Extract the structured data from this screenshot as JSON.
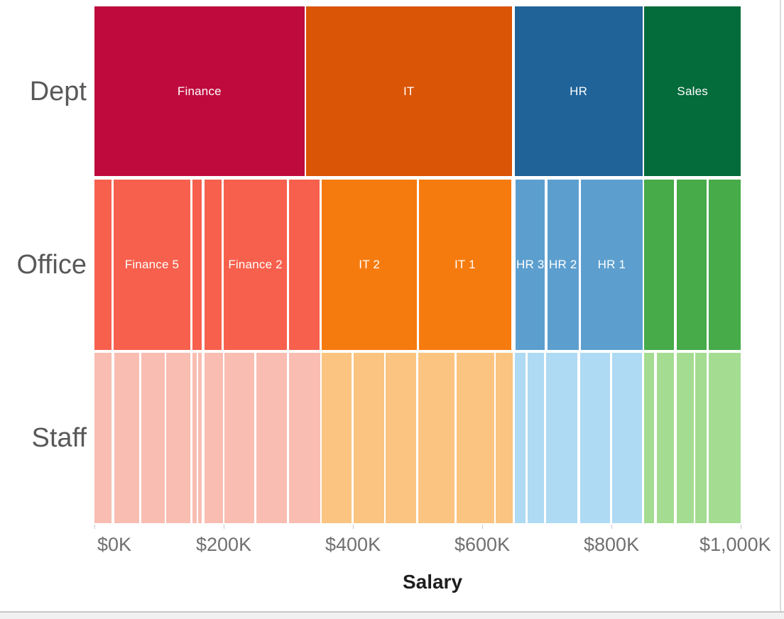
{
  "page": {
    "background": "#ffffff",
    "bottom_strip_color": "#f1f1f1",
    "divider_color": "#c7c7c7",
    "right_border_color": "#dcdcdc"
  },
  "chart_data": {
    "type": "icicle-stacked-bar",
    "xlabel": "Salary",
    "x_unit": "$K",
    "x_domain": [
      0,
      1000
    ],
    "grid": "off",
    "legend": "none",
    "x_ticks": [
      {
        "value": 0,
        "label": "$0K"
      },
      {
        "value": 200,
        "label": "$200K"
      },
      {
        "value": 400,
        "label": "$400K"
      },
      {
        "value": 600,
        "label": "$600K"
      },
      {
        "value": 800,
        "label": "$800K"
      },
      {
        "value": 1000,
        "label": "$1,000K"
      }
    ],
    "colors": {
      "dept": {
        "Finance": "#be0a3c",
        "IT": "#da5506",
        "HR": "#1f6398",
        "Sales": "#046b3a"
      },
      "office": {
        "Finance": "#f7604d",
        "IT": "#f67b0e",
        "HR": "#5c9fcf",
        "Sales": "#46ab48"
      },
      "staff": {
        "Finance": "#f9bdb2",
        "IT": "#fbc480",
        "HR": "#aedaf3",
        "Sales": "#a4dc92"
      }
    },
    "label_color": "#ffffff",
    "rows": [
      {
        "key": "dept",
        "label": "Dept",
        "segments": [
          {
            "dept": "Finance",
            "label": "Finance",
            "x0_k": 0,
            "x1_k": 325,
            "value_k": 325
          },
          {
            "dept": "IT",
            "label": "IT",
            "x0_k": 327,
            "x1_k": 646,
            "value_k": 319
          },
          {
            "dept": "HR",
            "label": "HR",
            "x0_k": 650,
            "x1_k": 848,
            "value_k": 198
          },
          {
            "dept": "Sales",
            "label": "Sales",
            "x0_k": 851,
            "x1_k": 1000,
            "value_k": 149
          }
        ]
      },
      {
        "key": "office",
        "label": "Office",
        "segments": [
          {
            "dept": "Finance",
            "label": "",
            "x0_k": 0,
            "x1_k": 26,
            "value_k": 26
          },
          {
            "dept": "Finance",
            "label": "Finance 5",
            "x0_k": 30,
            "x1_k": 148,
            "value_k": 118
          },
          {
            "dept": "Finance",
            "label": "",
            "x0_k": 152,
            "x1_k": 166,
            "value_k": 14
          },
          {
            "dept": "Finance",
            "label": "",
            "x0_k": 170,
            "x1_k": 197,
            "value_k": 27
          },
          {
            "dept": "Finance",
            "label": "Finance 2",
            "x0_k": 200,
            "x1_k": 298,
            "value_k": 98
          },
          {
            "dept": "Finance",
            "label": "",
            "x0_k": 301,
            "x1_k": 348,
            "value_k": 47
          },
          {
            "dept": "IT",
            "label": "IT 2",
            "x0_k": 352,
            "x1_k": 499,
            "value_k": 147
          },
          {
            "dept": "IT",
            "label": "IT 1",
            "x0_k": 502,
            "x1_k": 645,
            "value_k": 143
          },
          {
            "dept": "HR",
            "label": "HR 3",
            "x0_k": 652,
            "x1_k": 697,
            "value_k": 45
          },
          {
            "dept": "HR",
            "label": "HR 2",
            "x0_k": 701,
            "x1_k": 749,
            "value_k": 48
          },
          {
            "dept": "HR",
            "label": "HR 1",
            "x0_k": 753,
            "x1_k": 848,
            "value_k": 95
          },
          {
            "dept": "Sales",
            "label": "",
            "x0_k": 850,
            "x1_k": 897,
            "value_k": 47
          },
          {
            "dept": "Sales",
            "label": "",
            "x0_k": 901,
            "x1_k": 947,
            "value_k": 46
          },
          {
            "dept": "Sales",
            "label": "",
            "x0_k": 951,
            "x1_k": 1000,
            "value_k": 49
          }
        ]
      },
      {
        "key": "staff",
        "label": "Staff",
        "segments": [
          {
            "dept": "Finance",
            "label": "",
            "x0_k": 0,
            "x1_k": 26,
            "value_k": 26
          },
          {
            "dept": "Finance",
            "label": "",
            "x0_k": 31,
            "x1_k": 69,
            "value_k": 38
          },
          {
            "dept": "Finance",
            "label": "",
            "x0_k": 73,
            "x1_k": 109,
            "value_k": 36
          },
          {
            "dept": "Finance",
            "label": "",
            "x0_k": 111,
            "x1_k": 148,
            "value_k": 37
          },
          {
            "dept": "Finance",
            "label": "",
            "x0_k": 152,
            "x1_k": 158,
            "value_k": 6
          },
          {
            "dept": "Finance",
            "label": "",
            "x0_k": 160,
            "x1_k": 166,
            "value_k": 6
          },
          {
            "dept": "Finance",
            "label": "",
            "x0_k": 170,
            "x1_k": 199,
            "value_k": 29
          },
          {
            "dept": "Finance",
            "label": "",
            "x0_k": 201,
            "x1_k": 247,
            "value_k": 46
          },
          {
            "dept": "Finance",
            "label": "",
            "x0_k": 251,
            "x1_k": 298,
            "value_k": 47
          },
          {
            "dept": "Finance",
            "label": "",
            "x0_k": 301,
            "x1_k": 350,
            "value_k": 49
          },
          {
            "dept": "IT",
            "label": "",
            "x0_k": 352,
            "x1_k": 398,
            "value_k": 46
          },
          {
            "dept": "IT",
            "label": "",
            "x0_k": 401,
            "x1_k": 448,
            "value_k": 47
          },
          {
            "dept": "IT",
            "label": "",
            "x0_k": 451,
            "x1_k": 498,
            "value_k": 47
          },
          {
            "dept": "IT",
            "label": "",
            "x0_k": 501,
            "x1_k": 557,
            "value_k": 56
          },
          {
            "dept": "IT",
            "label": "",
            "x0_k": 560,
            "x1_k": 619,
            "value_k": 59
          },
          {
            "dept": "IT",
            "label": "",
            "x0_k": 621,
            "x1_k": 647,
            "value_k": 26
          },
          {
            "dept": "HR",
            "label": "",
            "x0_k": 650,
            "x1_k": 667,
            "value_k": 17
          },
          {
            "dept": "HR",
            "label": "",
            "x0_k": 670,
            "x1_k": 696,
            "value_k": 26
          },
          {
            "dept": "HR",
            "label": "",
            "x0_k": 699,
            "x1_k": 747,
            "value_k": 48
          },
          {
            "dept": "HR",
            "label": "",
            "x0_k": 752,
            "x1_k": 798,
            "value_k": 46
          },
          {
            "dept": "HR",
            "label": "",
            "x0_k": 801,
            "x1_k": 847,
            "value_k": 46
          },
          {
            "dept": "Sales",
            "label": "",
            "x0_k": 850,
            "x1_k": 866,
            "value_k": 16
          },
          {
            "dept": "Sales",
            "label": "",
            "x0_k": 870,
            "x1_k": 897,
            "value_k": 27
          },
          {
            "dept": "Sales",
            "label": "",
            "x0_k": 901,
            "x1_k": 927,
            "value_k": 26
          },
          {
            "dept": "Sales",
            "label": "",
            "x0_k": 930,
            "x1_k": 947,
            "value_k": 17
          },
          {
            "dept": "Sales",
            "label": "",
            "x0_k": 951,
            "x1_k": 1000,
            "value_k": 49
          }
        ]
      }
    ]
  }
}
